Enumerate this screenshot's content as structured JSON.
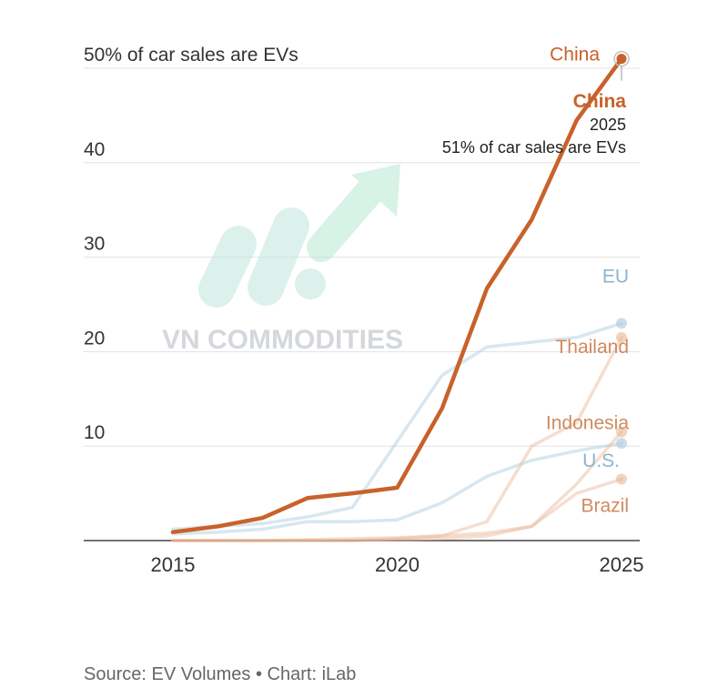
{
  "chart_data": {
    "type": "line",
    "title": "",
    "xlabel": "",
    "ylabel": "",
    "xlim": [
      2015,
      2025
    ],
    "ylim": [
      0,
      50
    ],
    "x_ticks": [
      "2015",
      "2020",
      "2025"
    ],
    "y_ticks": [
      {
        "value": 10,
        "label": "10"
      },
      {
        "value": 20,
        "label": "20"
      },
      {
        "value": 30,
        "label": "30"
      },
      {
        "value": 40,
        "label": "40"
      },
      {
        "value": 50,
        "label": "50% of car sales are EVs"
      }
    ],
    "grid": true,
    "series": [
      {
        "name": "EU",
        "color": "#a9c9dc",
        "label_value": 28,
        "x": [
          2015,
          2016,
          2017,
          2018,
          2019,
          2020,
          2021,
          2022,
          2023,
          2024,
          2025
        ],
        "y": [
          1.2,
          1.5,
          1.8,
          2.5,
          3.5,
          10.5,
          17.5,
          20.5,
          21,
          21.5,
          23
        ]
      },
      {
        "name": "U.S.",
        "color": "#a9c9dc",
        "label_value": 8.5,
        "x": [
          2015,
          2016,
          2017,
          2018,
          2019,
          2020,
          2021,
          2022,
          2023,
          2024,
          2025
        ],
        "y": [
          0.7,
          0.9,
          1.2,
          2,
          2,
          2.2,
          4,
          6.8,
          8.5,
          9.5,
          10.3
        ]
      },
      {
        "name": "Thailand",
        "color": "#e8b596",
        "label_value": 20.5,
        "x": [
          2015,
          2016,
          2017,
          2018,
          2019,
          2020,
          2021,
          2022,
          2023,
          2024,
          2025
        ],
        "y": [
          0,
          0,
          0,
          0.1,
          0.2,
          0.3,
          0.5,
          2,
          10,
          12.5,
          21.5
        ]
      },
      {
        "name": "Indonesia",
        "color": "#e8b596",
        "label_value": 12.5,
        "x": [
          2015,
          2016,
          2017,
          2018,
          2019,
          2020,
          2021,
          2022,
          2023,
          2024,
          2025
        ],
        "y": [
          0,
          0,
          0,
          0,
          0,
          0.1,
          0.2,
          0.5,
          1.5,
          6,
          11.5
        ]
      },
      {
        "name": "Brazil",
        "color": "#e8b596",
        "label_value": 3.7,
        "x": [
          2015,
          2016,
          2017,
          2018,
          2019,
          2020,
          2021,
          2022,
          2023,
          2024,
          2025
        ],
        "y": [
          0,
          0,
          0,
          0,
          0,
          0.2,
          0.5,
          0.8,
          1.5,
          5,
          6.5
        ]
      },
      {
        "name": "China",
        "color": "#c8622a",
        "label_value": 51.5,
        "x": [
          2015,
          2016,
          2017,
          2018,
          2019,
          2020,
          2021,
          2022,
          2023,
          2024,
          2025
        ],
        "y": [
          0.9,
          1.5,
          2.4,
          4.5,
          5,
          5.6,
          14,
          26.7,
          34,
          44.5,
          51
        ]
      }
    ],
    "annotation": {
      "title": "China",
      "year": "2025",
      "text": "51% of car sales are EVs",
      "color": "#c8622a"
    }
  },
  "watermark": {
    "text": "VN COMMODITIES"
  },
  "source": "Source: EV Volumes • Chart: iLab"
}
